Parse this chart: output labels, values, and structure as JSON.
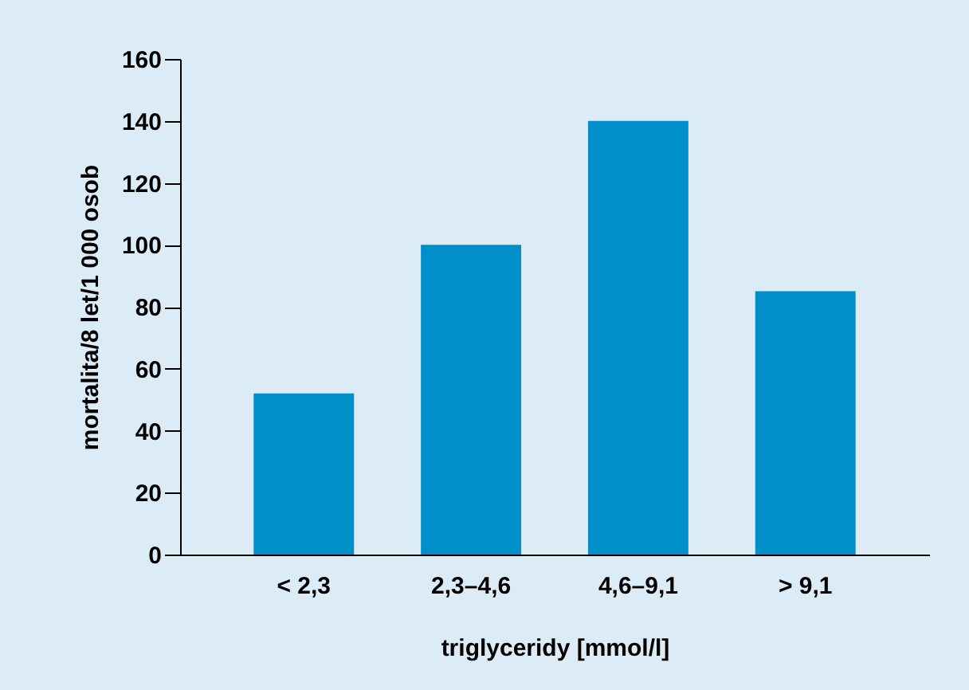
{
  "chart_data": {
    "type": "bar",
    "xlabel": "triglyceridy [mmol/l]",
    "ylabel": "mortalita/8 let/1 000 osob",
    "categories": [
      "< 2,3",
      "2,3–4,6",
      "4,6–9,1",
      "> 9,1"
    ],
    "values": [
      52,
      100,
      140,
      85
    ],
    "color": "#008fc8",
    "ylim": [
      0,
      160
    ],
    "yticks": [
      0,
      20,
      40,
      60,
      80,
      100,
      120,
      140,
      160
    ],
    "grid": false
  }
}
